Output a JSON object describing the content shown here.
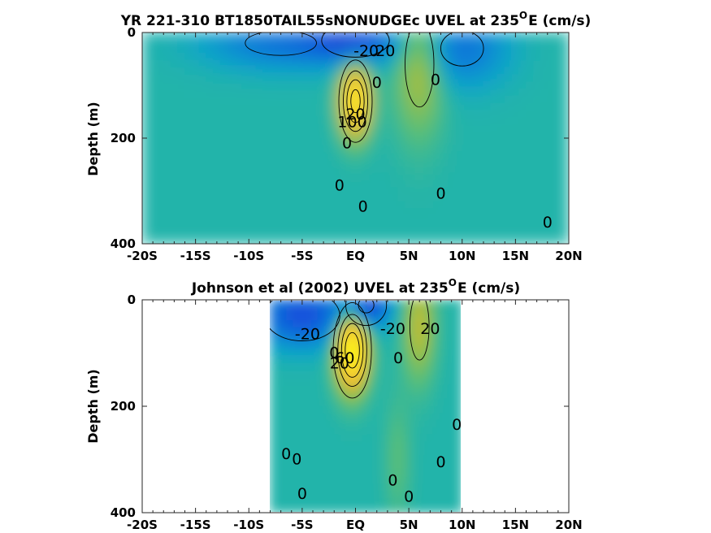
{
  "chart_data": [
    {
      "type": "heatmap",
      "title_main": "YR 221-310 BT1850TAIL55sNONUDGEc UVEL at 235",
      "title_sup": "O",
      "title_tail": "E (cm/s)",
      "ylabel": "Depth (m)",
      "xlabel": "",
      "xlim": [
        -20,
        20
      ],
      "ylim": [
        400,
        0
      ],
      "x_ticks": [
        -20,
        -15,
        -10,
        -5,
        0,
        5,
        10,
        15,
        20
      ],
      "x_tick_labels": [
        "-20S",
        "-15S",
        "-10S",
        "-5S",
        "EQ",
        "5N",
        "10N",
        "15N",
        "20N"
      ],
      "y_ticks": [
        0,
        200,
        400
      ],
      "y_tick_labels": [
        "0",
        "200",
        "400"
      ],
      "colormap": "parula",
      "background_value": 0,
      "features": [
        {
          "name": "Equatorial Undercurrent",
          "lat": 0,
          "depth": 130,
          "peak": 90,
          "width_lat": 0.9,
          "width_depth": 45
        },
        {
          "name": "South Equatorial Current",
          "lat": 0,
          "depth": 15,
          "peak": -35,
          "width_lat": 3,
          "width_depth": 30
        },
        {
          "name": "South Equatorial Current (south)",
          "lat": -7,
          "depth": 20,
          "peak": -25,
          "width_lat": 5,
          "width_depth": 35
        },
        {
          "name": "North Equatorial Countercurrent",
          "lat": 6,
          "depth": 60,
          "peak": 30,
          "width_lat": 1.5,
          "width_depth": 90
        },
        {
          "name": "North Equatorial Current",
          "lat": 10,
          "depth": 30,
          "peak": -25,
          "width_lat": 3,
          "width_depth": 50
        }
      ],
      "contour_labels": [
        {
          "text": "-20",
          "lat": 1.0,
          "depth": 35
        },
        {
          "text": "20",
          "lat": 2.8,
          "depth": 35
        },
        {
          "text": "0",
          "lat": 2.0,
          "depth": 95
        },
        {
          "text": "0",
          "lat": 7.5,
          "depth": 90
        },
        {
          "text": "20",
          "lat": 0.0,
          "depth": 155
        },
        {
          "text": "100",
          "lat": -0.3,
          "depth": 170
        },
        {
          "text": "0",
          "lat": -0.8,
          "depth": 210
        },
        {
          "text": "0",
          "lat": -1.5,
          "depth": 290
        },
        {
          "text": "0",
          "lat": 0.7,
          "depth": 330
        },
        {
          "text": "0",
          "lat": 8.0,
          "depth": 305
        },
        {
          "text": "0",
          "lat": 18.0,
          "depth": 360
        }
      ]
    },
    {
      "type": "heatmap",
      "title_main": "Johnson et al (2002) UVEL at 235",
      "title_sup": "O",
      "title_tail": "E (cm/s)",
      "ylabel": "Depth (m)",
      "xlabel": "",
      "xlim": [
        -20,
        20
      ],
      "ylim": [
        400,
        0
      ],
      "x_ticks": [
        -20,
        -15,
        -10,
        -5,
        0,
        5,
        10,
        15,
        20
      ],
      "x_tick_labels": [
        "-20S",
        "-15S",
        "-10S",
        "-5S",
        "EQ",
        "5N",
        "10N",
        "15N",
        "20N"
      ],
      "y_ticks": [
        0,
        200,
        400
      ],
      "y_tick_labels": [
        "0",
        "200",
        "400"
      ],
      "colormap": "parula",
      "data_extent_lat": [
        -8,
        10
      ],
      "background_value": 0,
      "features": [
        {
          "name": "Equatorial Undercurrent",
          "lat": -0.3,
          "depth": 95,
          "peak": 100,
          "width_lat": 1.0,
          "width_depth": 50
        },
        {
          "name": "South Equatorial Current",
          "lat": 1.0,
          "depth": 10,
          "peak": -45,
          "width_lat": 1.5,
          "width_depth": 30
        },
        {
          "name": "South Equatorial Current (south)",
          "lat": -5,
          "depth": 30,
          "peak": -40,
          "width_lat": 3,
          "width_depth": 40
        },
        {
          "name": "North Equatorial Countercurrent",
          "lat": 6,
          "depth": 50,
          "peak": 30,
          "width_lat": 1.0,
          "width_depth": 70
        },
        {
          "name": "Deep jet",
          "lat": 4,
          "depth": 300,
          "peak": 10,
          "width_lat": 0.8,
          "width_depth": 80
        }
      ],
      "contour_labels": [
        {
          "text": "-20",
          "lat": -4.5,
          "depth": 65
        },
        {
          "text": "-20",
          "lat": 3.5,
          "depth": 55
        },
        {
          "text": "20",
          "lat": 7.0,
          "depth": 55
        },
        {
          "text": "0",
          "lat": -2.0,
          "depth": 100
        },
        {
          "text": "20",
          "lat": -1.5,
          "depth": 120
        },
        {
          "text": "60",
          "lat": -1.0,
          "depth": 110
        },
        {
          "text": "0",
          "lat": 4.0,
          "depth": 110
        },
        {
          "text": "0",
          "lat": 9.5,
          "depth": 235
        },
        {
          "text": "0",
          "lat": -6.5,
          "depth": 290
        },
        {
          "text": "0",
          "lat": -5.5,
          "depth": 300
        },
        {
          "text": "0",
          "lat": 3.5,
          "depth": 340
        },
        {
          "text": "0",
          "lat": 8.0,
          "depth": 305
        },
        {
          "text": "0",
          "lat": -5.0,
          "depth": 365
        },
        {
          "text": "0",
          "lat": 5.0,
          "depth": 370
        }
      ]
    }
  ]
}
